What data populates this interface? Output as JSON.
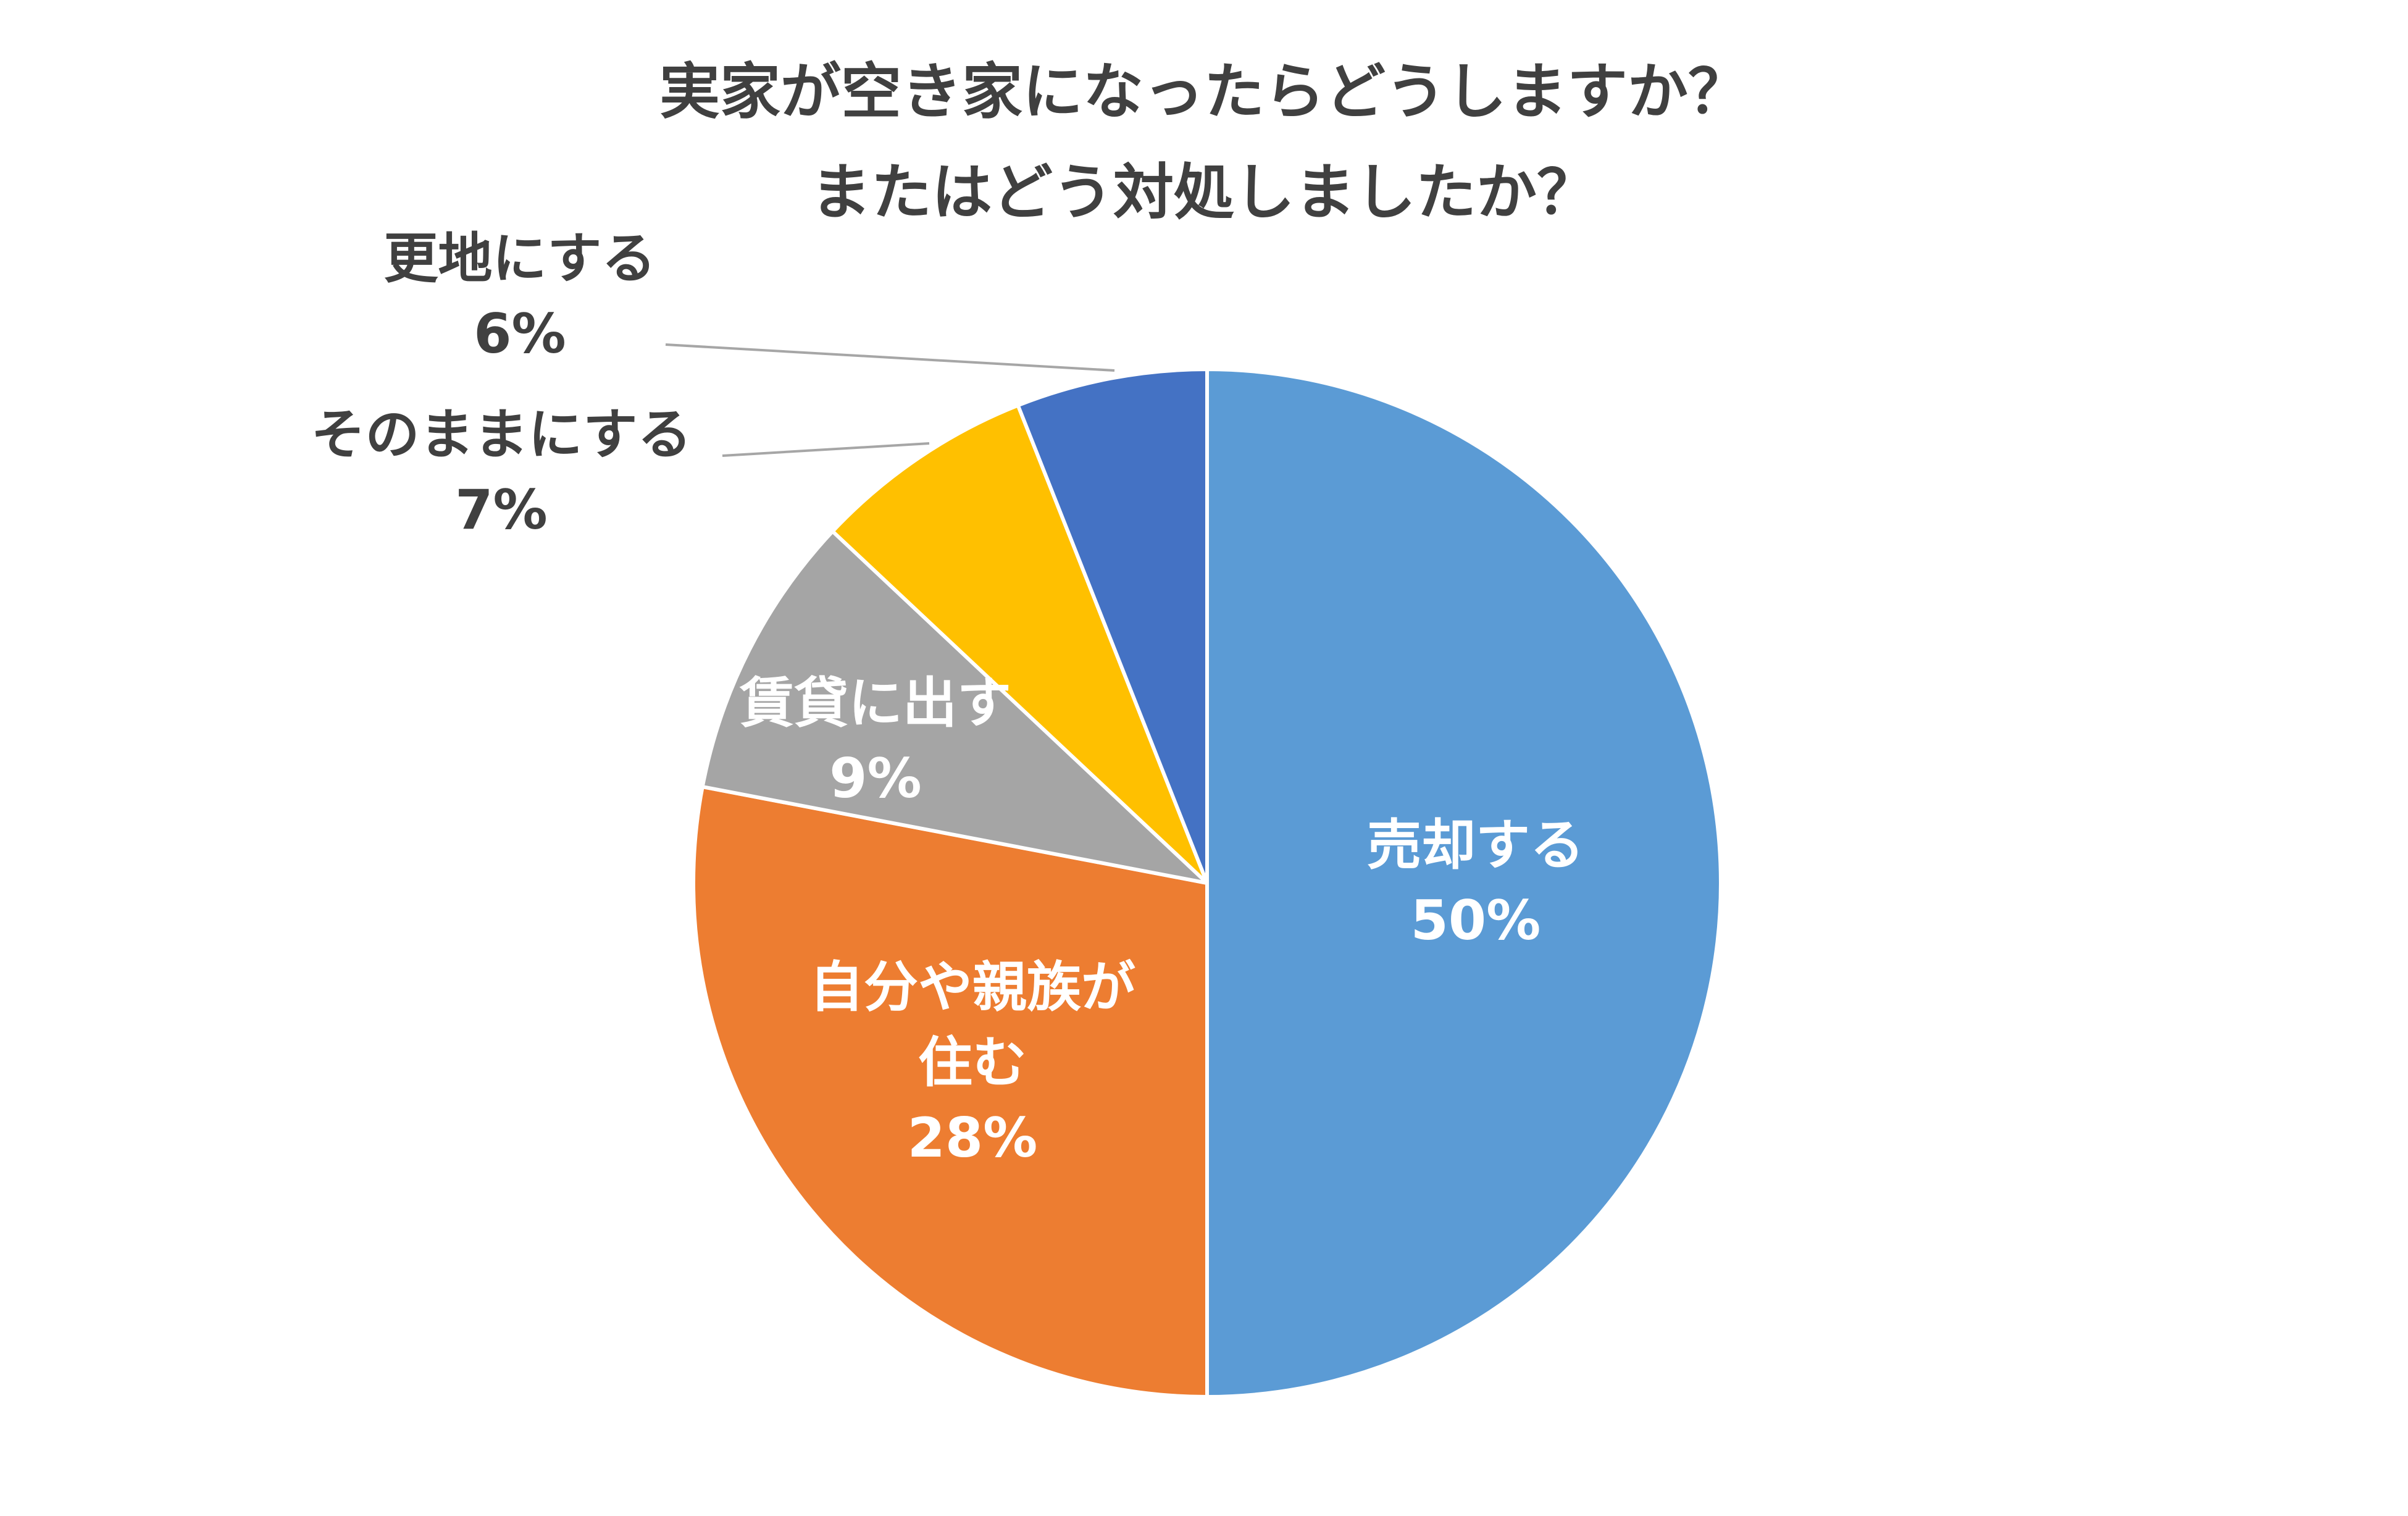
{
  "chart_data": {
    "type": "pie",
    "title": [
      "実家が空き家になったらどうしますか？",
      "またはどう対処しましたか？"
    ],
    "slices": [
      {
        "label": [
          "売却する"
        ],
        "value": 50,
        "value_label": "50%",
        "color": "#5B9BD5",
        "label_placement": "inside"
      },
      {
        "label": [
          "自分や親族が",
          "住む"
        ],
        "value": 28,
        "value_label": "28%",
        "color": "#ED7D31",
        "label_placement": "inside"
      },
      {
        "label": [
          "賃貸に出す"
        ],
        "value": 9,
        "value_label": "9%",
        "color": "#A5A5A5",
        "label_placement": "inside"
      },
      {
        "label": [
          "そのままにする"
        ],
        "value": 7,
        "value_label": "7%",
        "color": "#FFC000",
        "label_placement": "outside"
      },
      {
        "label": [
          "更地にする"
        ],
        "value": 6,
        "value_label": "6%",
        "color": "#4472C4",
        "label_placement": "outside"
      }
    ],
    "start": "12 o'clock",
    "direction": "clockwise",
    "legend": "none"
  }
}
